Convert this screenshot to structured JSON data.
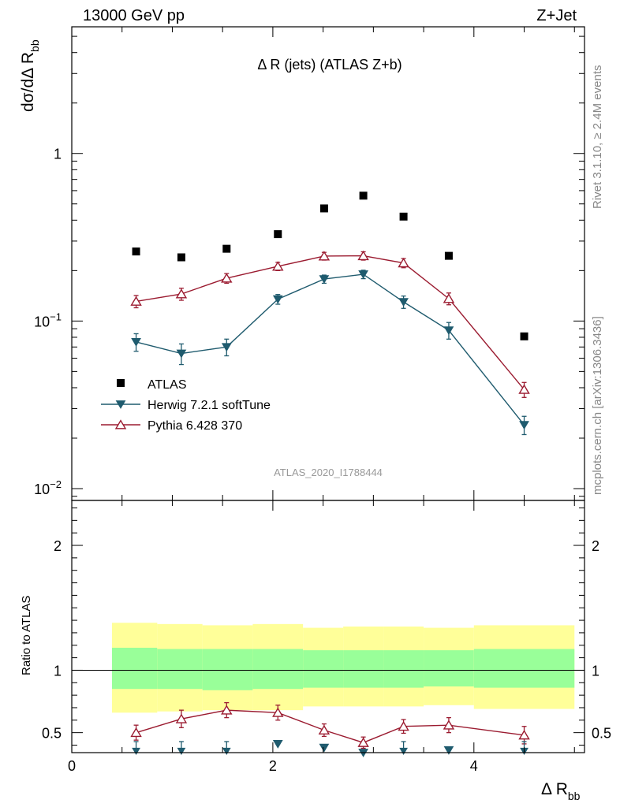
{
  "header": {
    "left": "13000 GeV pp",
    "right": "Z+Jet",
    "plot_title": "Δ R (jets) (ATLAS Z+b)",
    "analysis_id": "ATLAS_2020_I1788444",
    "side_rivet": "Rivet 3.1.10, ≥ 2.4M events",
    "side_mcplots": "mcplots.cern.ch [arXiv:1306.3436]"
  },
  "top_panel": {
    "ylabel": "dσ/dΔ R_bb",
    "ylabel_main": "dσ/dΔ R",
    "ylabel_sub": "bb",
    "yscale": "log",
    "ylim": [
      0.0085,
      5.7
    ],
    "ytick_labels": [
      {
        "value": 0.01,
        "base": "10",
        "exp": "−2"
      },
      {
        "value": 0.1,
        "base": "10",
        "exp": "−1"
      },
      {
        "value": 1,
        "base": "1",
        "exp": ""
      }
    ]
  },
  "bottom_panel": {
    "ylabel": "Ratio to ATLAS",
    "ylim": [
      0.34,
      2.36
    ],
    "ytick_labels": [
      "0.5",
      "1",
      "2"
    ],
    "ytick_values": [
      0.5,
      1,
      2
    ]
  },
  "xaxis": {
    "label": "Δ R_bb",
    "label_main": "Δ R",
    "label_sub": "bb",
    "xlim": [
      0,
      5.1
    ],
    "tick_values": [
      0,
      2,
      4
    ],
    "tick_labels": [
      "0",
      "2",
      "4"
    ]
  },
  "legend": {
    "position": "lower-left",
    "items": [
      "ATLAS",
      "Herwig 7.2.1 softTune",
      "Pythia 6.428 370"
    ]
  },
  "colors": {
    "atlas": "#000000",
    "herwig": "#1f5b6e",
    "pythia": "#9b1b30",
    "band_inner": "#99ff99",
    "band_outer": "#ffff99"
  },
  "chart_data": {
    "type": "scatter",
    "title": "Δ R (jets) (ATLAS Z+b)",
    "xlabel": "Δ R_bb",
    "ylabel": "dσ/dΔ R_bb",
    "bin_edges": [
      0.4,
      0.85,
      1.3,
      1.8,
      2.3,
      2.7,
      3.1,
      3.5,
      4.0,
      5.0
    ],
    "x": [
      0.64,
      1.09,
      1.54,
      2.05,
      2.51,
      2.9,
      3.3,
      3.75,
      4.5
    ],
    "series": [
      {
        "name": "ATLAS",
        "marker": "square",
        "values": [
          0.26,
          0.24,
          0.27,
          0.33,
          0.47,
          0.56,
          0.42,
          0.245,
          0.081
        ]
      },
      {
        "name": "Herwig 7.2.1 softTune",
        "marker": "triangle-down-filled",
        "values": [
          0.075,
          0.064,
          0.07,
          0.135,
          0.178,
          0.19,
          0.13,
          0.088,
          0.024
        ],
        "errors": [
          0.009,
          0.009,
          0.008,
          0.009,
          0.01,
          0.011,
          0.011,
          0.01,
          0.003
        ],
        "ratio": [
          0.29,
          0.27,
          0.26,
          0.41,
          0.38,
          0.34,
          0.31,
          0.36,
          0.3
        ]
      },
      {
        "name": "Pythia 6.428 370",
        "marker": "triangle-up-open",
        "values": [
          0.131,
          0.145,
          0.18,
          0.212,
          0.244,
          0.245,
          0.222,
          0.136,
          0.039
        ],
        "errors": [
          0.011,
          0.012,
          0.012,
          0.012,
          0.013,
          0.014,
          0.014,
          0.011,
          0.004
        ],
        "ratio": [
          0.5,
          0.61,
          0.68,
          0.66,
          0.52,
          0.42,
          0.55,
          0.56,
          0.48
        ],
        "ratio_errors": [
          0.06,
          0.07,
          0.06,
          0.06,
          0.05,
          0.045,
          0.055,
          0.06,
          0.07
        ]
      }
    ],
    "ratio_band_inner": [
      [
        0.85,
        1.18
      ],
      [
        0.85,
        1.17
      ],
      [
        0.84,
        1.17
      ],
      [
        0.85,
        1.17
      ],
      [
        0.86,
        1.16
      ],
      [
        0.86,
        1.16
      ],
      [
        0.86,
        1.16
      ],
      [
        0.87,
        1.16
      ],
      [
        0.86,
        1.17
      ]
    ],
    "ratio_band_outer": [
      [
        0.66,
        1.38
      ],
      [
        0.67,
        1.37
      ],
      [
        0.68,
        1.36
      ],
      [
        0.68,
        1.37
      ],
      [
        0.71,
        1.34
      ],
      [
        0.71,
        1.35
      ],
      [
        0.71,
        1.35
      ],
      [
        0.72,
        1.34
      ],
      [
        0.69,
        1.36
      ]
    ]
  }
}
